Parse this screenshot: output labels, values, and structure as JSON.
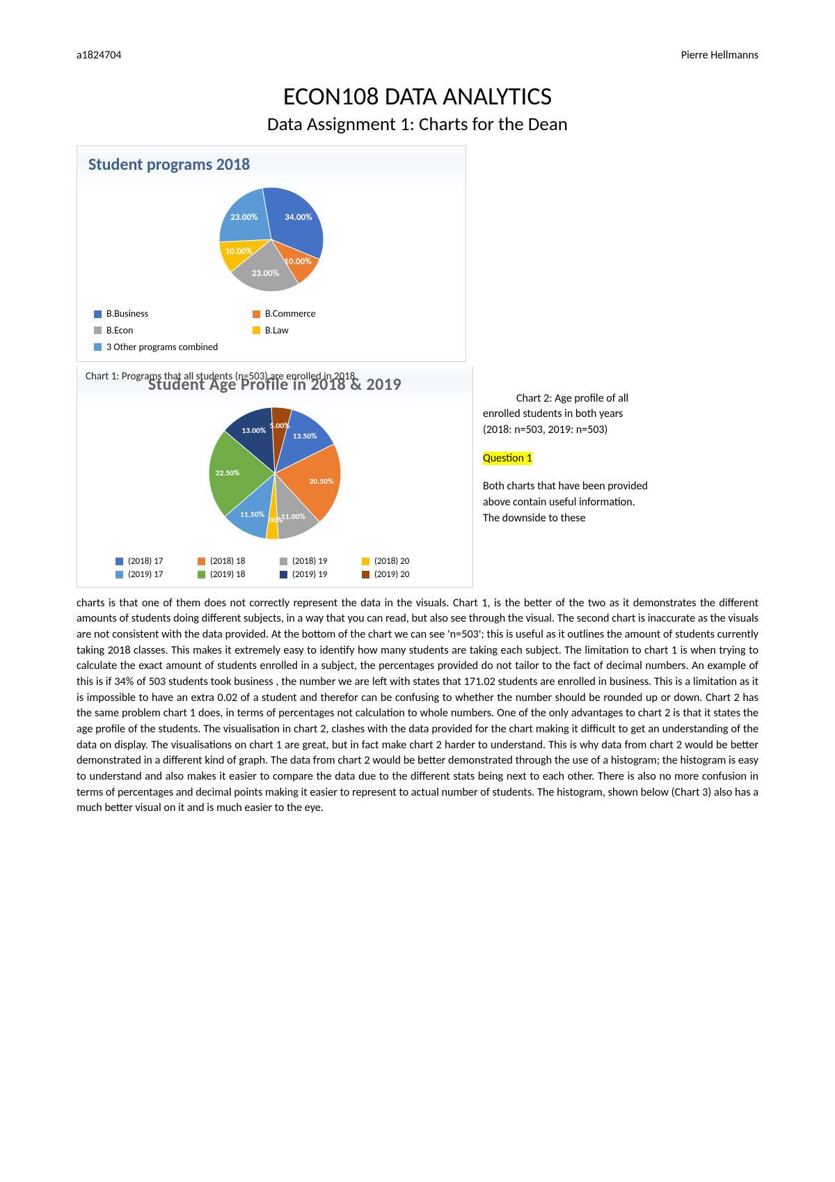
{
  "header": {
    "left": "a1824704",
    "right": "Pierre Hellmanns"
  },
  "title": {
    "main": "ECON108 DATA ANALYTICS",
    "sub": "Data Assignment 1: Charts for the Dean"
  },
  "chart1": {
    "type": "pie",
    "title": "Student programs 2018",
    "caption_prefix": "Chart 1: Programs that all students (n=503) are enrolled in 2018",
    "slices": [
      {
        "label": "B.Business",
        "value": 34.0,
        "pct": "34.00%",
        "color": "#4472c4"
      },
      {
        "label": "B.Commerce",
        "value": 10.0,
        "pct": "10.00%",
        "color": "#ed7d31"
      },
      {
        "label": "B.Econ",
        "value": 23.0,
        "pct": "23.00%",
        "color": "#a5a5a5"
      },
      {
        "label": "B.Law",
        "value": 10.0,
        "pct": "10.00%",
        "color": "#ffc000"
      },
      {
        "label": "3 Other programs combined",
        "value": 23.0,
        "pct": "23.00%",
        "color": "#5b9bd5"
      }
    ],
    "legend_marker_colors": [
      "#4472c4",
      "#ed7d31",
      "#a5a5a5",
      "#ffc000",
      "#5b9bd5"
    ]
  },
  "chart2": {
    "type": "pie",
    "title": "Student Age Profile in 2018 & 2019",
    "caption": "Chart 2: Age profile of all enrolled students in both years (2018: n=503, 2019: n=503)",
    "slices": [
      {
        "label": "(2018)  17",
        "value": 13.5,
        "pct": "13.50%",
        "color": "#4472c4"
      },
      {
        "label": "(2018) 18",
        "value": 20.5,
        "pct": "20.50%",
        "color": "#ed7d31"
      },
      {
        "label": "(2018) 19",
        "value": 11.0,
        "pct": "11.00%",
        "color": "#a5a5a5"
      },
      {
        "label": "(2018) 20",
        "value": 3.0,
        "pct": "3.00%",
        "color": "#ffc000"
      },
      {
        "label": "(2019)  17",
        "value": 11.5,
        "pct": "11.50%",
        "color": "#5b9bd5"
      },
      {
        "label": "(2019) 18",
        "value": 22.5,
        "pct": "22.50%",
        "color": "#70ad47"
      },
      {
        "label": "(2019) 19",
        "value": 13.0,
        "pct": "13.00%",
        "color": "#264478"
      },
      {
        "label": "(2019) 20",
        "value": 5.0,
        "pct": "5.00%",
        "color": "#9e480e"
      }
    ]
  },
  "question1_heading": "Question 1",
  "right_intro": "Both charts that have been provided above contain useful information. The downside to these",
  "body": "charts is that one of them does not correctly represent the data in the visuals. Chart 1, is the better of the two as it demonstrates the different amounts of students doing different subjects, in a way that you can read, but also see through the visual. The second chart is inaccurate as the visuals are not consistent with the data provided. At the bottom of the chart we can see 'n=503'; this is useful as it outlines the amount of students currently taking 2018 classes. This makes it extremely easy to identify how many students are taking each subject. The limitation to chart 1 is when trying to calculate the exact amount of students enrolled in a subject, the percentages provided do not tailor to the fact of decimal numbers. An example of this is if 34% of 503 students took business , the number we are left with states that 171.02 students are enrolled in business. This is a limitation as it is impossible to have an extra 0.02 of a student and therefor can be confusing to whether the number should be rounded up or down. Chart 2 has the same problem chart 1 does, in terms of percentages not calculation to whole numbers. One of the only advantages to chart 2 is that it states the age profile of the students. The visualisation in chart 2, clashes with the data provided for the chart making it difficult to get an understanding of the data on display. The visualisations on chart 1 are great, but in fact make chart 2 harder to understand. This is why data from chart 2 would be better demonstrated in a different kind of graph. The data from chart 2 would be better demonstrated through the use of a histogram; the histogram is easy to understand and also makes it easier to compare the data due to the different stats being next to each other. There is also no more confusion in terms of percentages and decimal points making it easier to represent to actual number of students. The histogram, shown below (Chart 3) also has a much better visual on it and is much easier to the eye."
}
